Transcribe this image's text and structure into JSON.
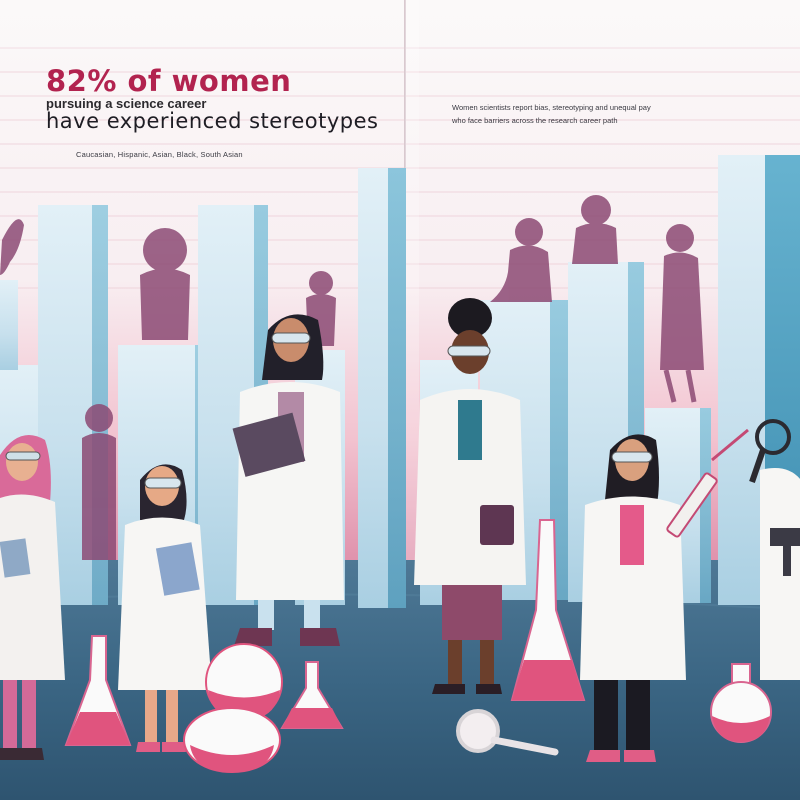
{
  "headline": "82% of women",
  "subheadline_line1": "pursuing a science career",
  "subheadline_line2": "have experienced stereotypes",
  "caption_left": "Caucasian, Hispanic, Asian, Black, South Asian",
  "right_text_line1": "Women scientists report bias, stereotyping and unequal pay",
  "right_text_line2": "who face barriers across the research career path",
  "colors": {
    "headline": "#b2234f",
    "pillar_light": "#d3e7f1",
    "pillar_dark": "#4c9dbd",
    "floor": "#36617f",
    "silhouette": "#8c4a74",
    "liquid": "#e0547e"
  }
}
